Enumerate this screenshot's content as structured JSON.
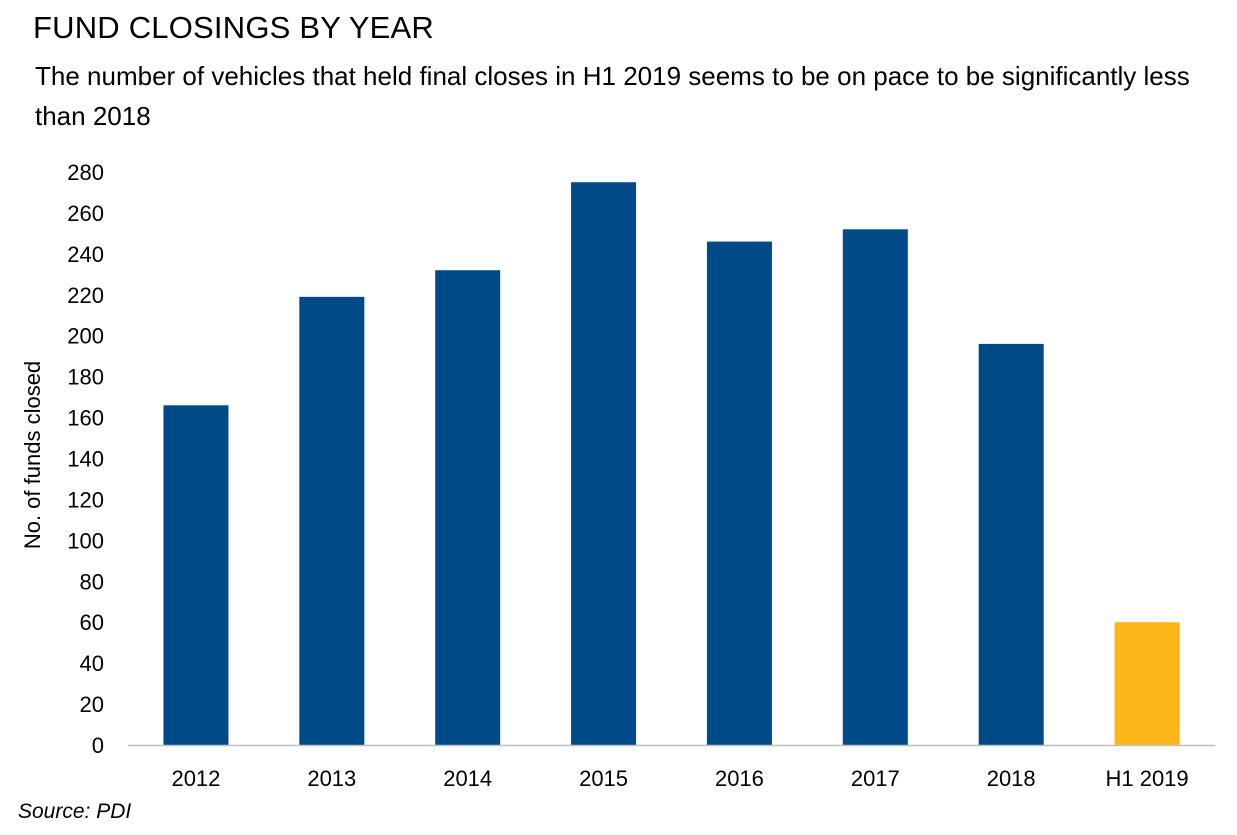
{
  "header": {
    "title": "FUND CLOSINGS BY YEAR",
    "subtitle": "The number of vehicles that held final closes in H1 2019 seems to be on pace to be significantly less than 2018"
  },
  "footer": {
    "source": "Source: PDI"
  },
  "chart_data": {
    "type": "bar",
    "title": "FUND CLOSINGS BY YEAR",
    "subtitle": "The number of vehicles that held final closes in H1 2019 seems to be on pace to be significantly less than 2018",
    "xlabel": "",
    "ylabel": "No. of funds closed",
    "categories": [
      "2012",
      "2013",
      "2014",
      "2015",
      "2016",
      "2017",
      "2018",
      "H1 2019"
    ],
    "values": [
      166,
      219,
      232,
      275,
      246,
      252,
      196,
      60
    ],
    "ylim": [
      0,
      280
    ],
    "yticks": [
      0,
      20,
      40,
      60,
      80,
      100,
      120,
      140,
      160,
      180,
      200,
      220,
      240,
      260,
      280
    ],
    "grid": false,
    "legend": "none",
    "colors": {
      "bar": "#004B87",
      "highlight": "#FDB71A",
      "axis": "#BFBFBF",
      "text": "#000000"
    },
    "highlight_category": "H1 2019"
  }
}
